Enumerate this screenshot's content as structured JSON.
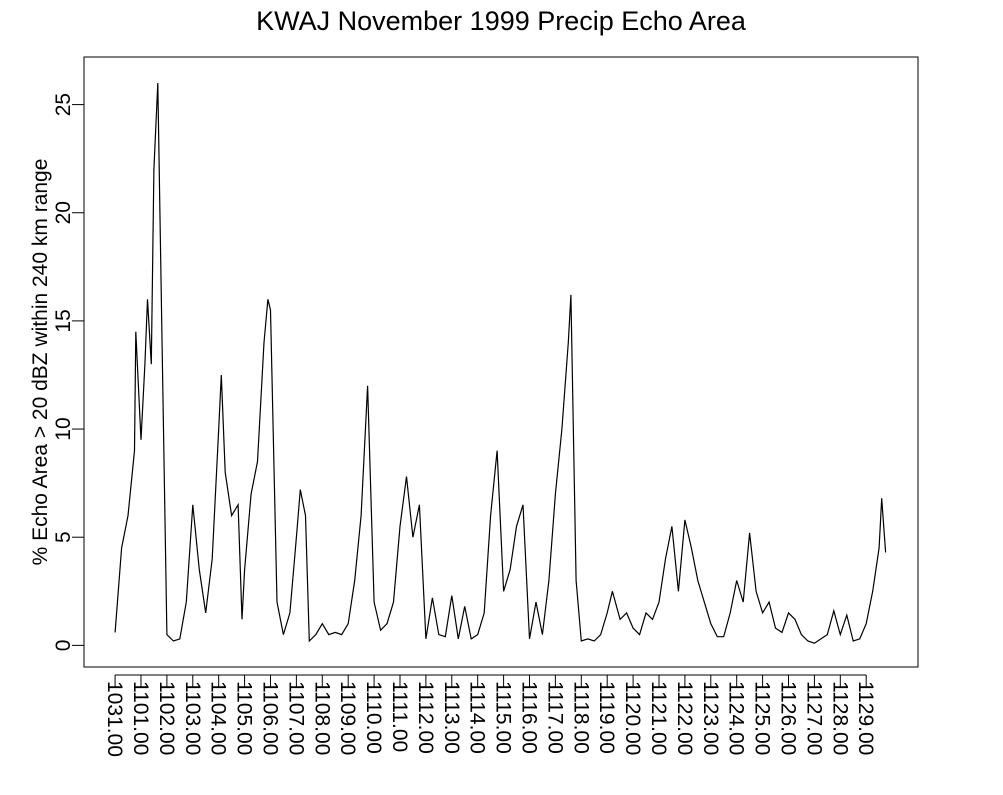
{
  "chart_data": {
    "type": "line",
    "title": "KWAJ November 1999 Precip Echo Area",
    "y_label": "% Echo Area > 20 dBZ within 240 km range",
    "color": "#000000",
    "x": [
      0,
      0.25,
      0.5,
      0.75,
      0.8,
      1.0,
      1.15,
      1.25,
      1.4,
      1.5,
      1.65,
      1.8,
      2.0,
      2.25,
      2.5,
      2.75,
      3.0,
      3.25,
      3.5,
      3.75,
      4.0,
      4.1,
      4.25,
      4.5,
      4.75,
      4.9,
      5.0,
      5.25,
      5.5,
      5.75,
      5.9,
      6.0,
      6.25,
      6.5,
      6.75,
      7.0,
      7.15,
      7.35,
      7.5,
      7.75,
      8.0,
      8.25,
      8.5,
      8.75,
      9.0,
      9.25,
      9.5,
      9.75,
      10.0,
      10.25,
      10.5,
      10.75,
      11.0,
      11.25,
      11.5,
      11.75,
      12.0,
      12.25,
      12.5,
      12.75,
      13.0,
      13.25,
      13.5,
      13.75,
      14.0,
      14.25,
      14.5,
      14.75,
      15.0,
      15.25,
      15.5,
      15.75,
      16.0,
      16.25,
      16.5,
      16.75,
      17.0,
      17.25,
      17.5,
      17.6,
      17.8,
      18.0,
      18.25,
      18.5,
      18.75,
      19.0,
      19.2,
      19.5,
      19.75,
      20.0,
      20.25,
      20.5,
      20.75,
      21.0,
      21.25,
      21.5,
      21.75,
      22.0,
      22.25,
      22.5,
      22.75,
      23.0,
      23.25,
      23.5,
      23.75,
      24.0,
      24.25,
      24.5,
      24.75,
      25.0,
      25.25,
      25.5,
      25.75,
      26.0,
      26.25,
      26.5,
      26.75,
      27.0,
      27.25,
      27.5,
      27.75,
      28.0,
      28.25,
      28.5,
      28.75,
      29.0,
      29.25,
      29.5,
      29.6,
      29.75
    ],
    "values": [
      0.6,
      4.5,
      6,
      9,
      14.5,
      9.5,
      13,
      16,
      13,
      22,
      26,
      15,
      0.5,
      0.2,
      0.3,
      2,
      6.5,
      3.5,
      1.5,
      4,
      10,
      12.5,
      8,
      6,
      6.5,
      1.2,
      3.5,
      7,
      8.5,
      14,
      16,
      15.5,
      2,
      0.5,
      1.5,
      5,
      7.2,
      6,
      0.2,
      0.5,
      1,
      0.5,
      0.6,
      0.5,
      1,
      3,
      6,
      12,
      2,
      0.7,
      1,
      2,
      5.5,
      7.8,
      5,
      6.5,
      0.3,
      2.2,
      0.5,
      0.4,
      2.3,
      0.3,
      1.8,
      0.3,
      0.5,
      1.5,
      6,
      9,
      2.5,
      3.5,
      5.5,
      6.5,
      0.3,
      2,
      0.5,
      3,
      7,
      10,
      14,
      16.2,
      3,
      0.2,
      0.3,
      0.2,
      0.5,
      1.5,
      2.5,
      1.2,
      1.5,
      0.8,
      0.5,
      1.5,
      1.2,
      2,
      4,
      5.5,
      2.5,
      5.8,
      4.5,
      3,
      2,
      1,
      0.4,
      0.4,
      1.5,
      3,
      2,
      5.2,
      2.5,
      1.5,
      2,
      0.8,
      0.6,
      1.5,
      1.2,
      0.5,
      0.2,
      0.1,
      0.3,
      0.5,
      1.6,
      0.5,
      1.4,
      0.2,
      0.3,
      1,
      2.5,
      4.5,
      6.8,
      4.3
    ],
    "xlim": [
      -1.2,
      31.0
    ],
    "ylim": [
      -1.0,
      27.2
    ],
    "yticks": [
      0,
      5,
      10,
      15,
      20,
      25
    ],
    "xticks": [
      {
        "value": 0,
        "label": "1031.00"
      },
      {
        "value": 1,
        "label": "1101.00"
      },
      {
        "value": 2,
        "label": "1102.00"
      },
      {
        "value": 3,
        "label": "1103.00"
      },
      {
        "value": 4,
        "label": "1104.00"
      },
      {
        "value": 5,
        "label": "1105.00"
      },
      {
        "value": 6,
        "label": "1106.00"
      },
      {
        "value": 7,
        "label": "1107.00"
      },
      {
        "value": 8,
        "label": "1108.00"
      },
      {
        "value": 9,
        "label": "1109.00"
      },
      {
        "value": 10,
        "label": "1110.00"
      },
      {
        "value": 11,
        "label": "1111.00"
      },
      {
        "value": 12,
        "label": "1112.00"
      },
      {
        "value": 13,
        "label": "1113.00"
      },
      {
        "value": 14,
        "label": "1114.00"
      },
      {
        "value": 15,
        "label": "1115.00"
      },
      {
        "value": 16,
        "label": "1116.00"
      },
      {
        "value": 17,
        "label": "1117.00"
      },
      {
        "value": 18,
        "label": "1118.00"
      },
      {
        "value": 19,
        "label": "1119.00"
      },
      {
        "value": 20,
        "label": "1120.00"
      },
      {
        "value": 21,
        "label": "1121.00"
      },
      {
        "value": 22,
        "label": "1122.00"
      },
      {
        "value": 23,
        "label": "1123.00"
      },
      {
        "value": 24,
        "label": "1124.00"
      },
      {
        "value": 25,
        "label": "1125.00"
      },
      {
        "value": 26,
        "label": "1126.00"
      },
      {
        "value": 27,
        "label": "1127.00"
      },
      {
        "value": 28,
        "label": "1128.00"
      },
      {
        "value": 29,
        "label": "1129.00"
      }
    ]
  }
}
